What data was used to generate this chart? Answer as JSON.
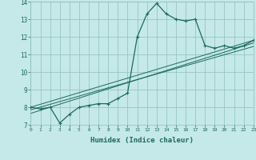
{
  "xlabel": "Humidex (Indice chaleur)",
  "bg_color": "#c5e8e8",
  "grid_color": "#8fbfbf",
  "line_color": "#1a6b5a",
  "xlim": [
    0,
    23
  ],
  "ylim": [
    7,
    14
  ],
  "xticks": [
    0,
    1,
    2,
    3,
    4,
    5,
    6,
    7,
    8,
    9,
    10,
    11,
    12,
    13,
    14,
    15,
    16,
    17,
    18,
    19,
    20,
    21,
    22,
    23
  ],
  "yticks": [
    7,
    8,
    9,
    10,
    11,
    12,
    13,
    14
  ],
  "curve_x": [
    0,
    1,
    2,
    3,
    4,
    5,
    6,
    7,
    8,
    9,
    10,
    11,
    12,
    13,
    14,
    15,
    16,
    17,
    18,
    19,
    20,
    21,
    22,
    23
  ],
  "curve_y": [
    8.0,
    7.9,
    8.0,
    7.1,
    7.6,
    8.0,
    8.1,
    8.2,
    8.2,
    8.5,
    8.8,
    12.0,
    13.3,
    13.9,
    13.3,
    13.0,
    12.9,
    13.0,
    11.5,
    11.35,
    11.5,
    11.35,
    11.5,
    11.8
  ],
  "line1_x": [
    0,
    23
  ],
  "line1_y": [
    7.85,
    11.45
  ],
  "line2_x": [
    0,
    23
  ],
  "line2_y": [
    7.65,
    11.65
  ],
  "line3_x": [
    0,
    23
  ],
  "line3_y": [
    8.0,
    11.8
  ]
}
